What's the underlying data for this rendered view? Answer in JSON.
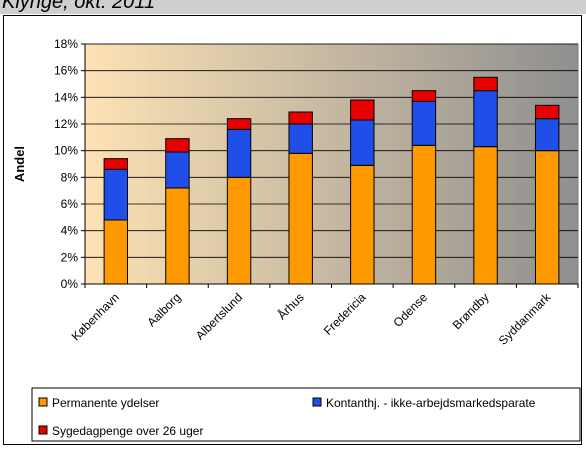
{
  "header": {
    "title": "Klynge, okt. 2011"
  },
  "colors": {
    "permanente": "#ff9900",
    "kontanthj": "#1f4ee8",
    "sygedagpenge": "#e80000",
    "plot_bg_start": "#fde2b4",
    "plot_bg_end": "#8f8f8f"
  },
  "chart_data": {
    "type": "bar",
    "stacked": true,
    "ylabel": "Andel",
    "xlabel": "",
    "ylim": [
      0,
      18
    ],
    "yticks": [
      "0%",
      "2%",
      "4%",
      "6%",
      "8%",
      "10%",
      "12%",
      "14%",
      "16%",
      "18%"
    ],
    "categories": [
      "København",
      "Aalborg",
      "Albertslund",
      "Århus",
      "Fredericia",
      "Odense",
      "Brøndby",
      "Syddanmark"
    ],
    "series": [
      {
        "name": "Permanente ydelser",
        "color": "#ff9900",
        "values": [
          4.8,
          7.2,
          8.0,
          9.8,
          8.9,
          10.4,
          10.3,
          10.0
        ]
      },
      {
        "name": "Kontanthj. - ikke-arbejdsmarkedsparate",
        "color": "#1f4ee8",
        "values": [
          3.8,
          2.7,
          3.6,
          2.2,
          3.4,
          3.3,
          4.2,
          2.4
        ]
      },
      {
        "name": "Sygedagpenge over 26 uger",
        "color": "#e80000",
        "values": [
          0.8,
          1.0,
          0.8,
          0.9,
          1.5,
          0.8,
          1.0,
          1.0
        ]
      }
    ],
    "legend_position": "bottom",
    "grid": true
  }
}
